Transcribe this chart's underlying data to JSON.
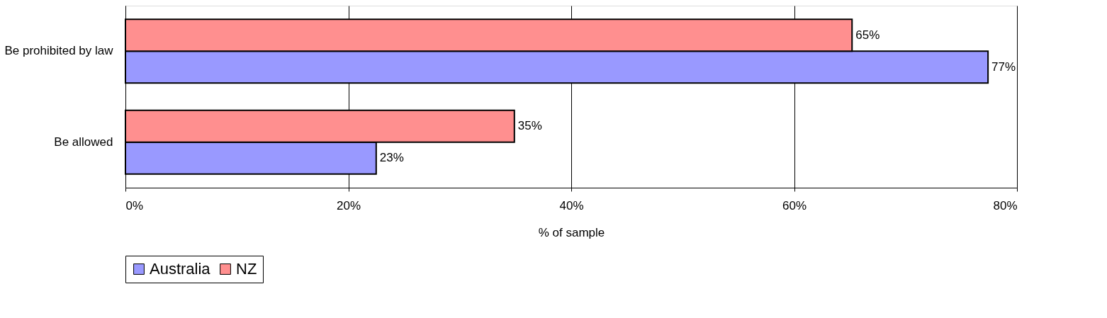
{
  "chart_data": {
    "type": "bar",
    "orientation": "horizontal",
    "xlabel": "% of sample",
    "categories": [
      "Be prohibited by law",
      "Be allowed"
    ],
    "series": [
      {
        "name": "Australia",
        "color": "#9999ff",
        "values": [
          77.4,
          22.5
        ],
        "value_labels": [
          "77%",
          "23%"
        ]
      },
      {
        "name": "NZ",
        "color": "#ff8f8f",
        "values": [
          65.2,
          34.9
        ],
        "value_labels": [
          "65%",
          "35%"
        ]
      }
    ],
    "xlim": [
      0,
      80
    ],
    "xticks": [
      {
        "value": 0,
        "label": "0%"
      },
      {
        "value": 20,
        "label": "20%"
      },
      {
        "value": 40,
        "label": "40%"
      },
      {
        "value": 60,
        "label": "60%"
      },
      {
        "value": 80,
        "label": "80%"
      }
    ],
    "grid": "x",
    "legend": "bottom"
  }
}
